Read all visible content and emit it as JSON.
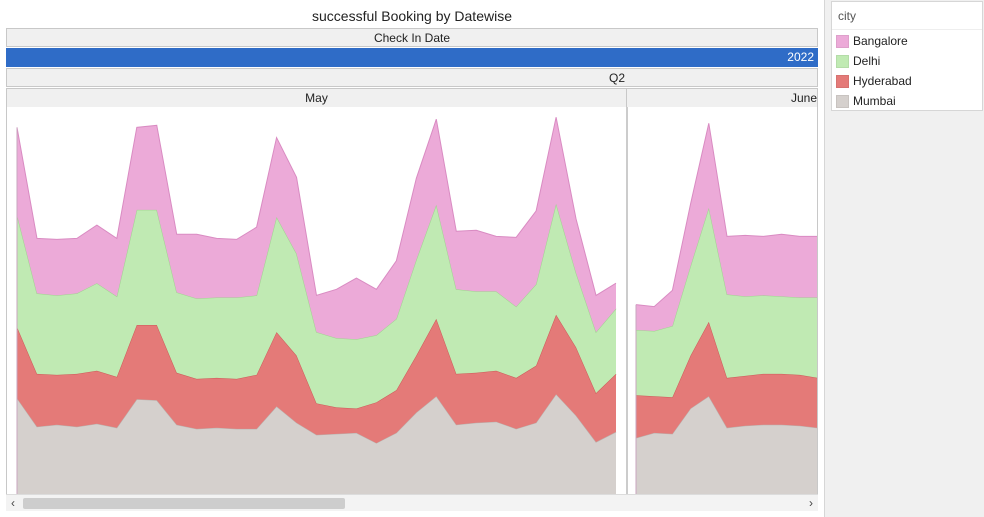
{
  "header": {
    "title": "successful Booking  by Datewise",
    "check_in_label": "Check In Date",
    "year_label": "2022",
    "quarter_label": "Q2",
    "months": [
      "May",
      "June"
    ]
  },
  "legend": {
    "title": "city",
    "items": [
      {
        "label": "Bangalore",
        "color": "#ecaad8"
      },
      {
        "label": "Delhi",
        "color": "#c0eab3"
      },
      {
        "label": "Hyderabad",
        "color": "#e47a78"
      },
      {
        "label": "Mumbai",
        "color": "#d5d0cd"
      }
    ]
  },
  "scrollbar": {
    "left_icon": "chevron-left-icon",
    "right_icon": "chevron-right-icon"
  },
  "chart_data": {
    "type": "area",
    "stacked": true,
    "title": "successful Booking  by Datewise",
    "xlabel": "Check In Date",
    "ylabel": "",
    "axes_shown": false,
    "grid": false,
    "colors": {
      "Bangalore": "#ecaad8",
      "Delhi": "#c0eab3",
      "Hyderabad": "#e47a78",
      "Mumbai": "#d5d0cd"
    },
    "panels": [
      {
        "month": "May",
        "series": [
          {
            "name": "Mumbai",
            "values": [
              94,
              66,
              68,
              66,
              69,
              65,
              93,
              92,
              68,
              64,
              65,
              64,
              64,
              86,
              70,
              58,
              59,
              60,
              50,
              60,
              80,
              96,
              68,
              70,
              71,
              64,
              70,
              98,
              77,
              51,
              61
            ]
          },
          {
            "name": "Hyderabad",
            "values": [
              70,
              52,
              49,
              52,
              52,
              50,
              73,
              74,
              51,
              49,
              49,
              49,
              53,
              73,
              66,
              31,
              26,
              24,
              40,
              42,
              56,
              76,
              50,
              49,
              50,
              50,
              56,
              78,
              67,
              48,
              57
            ]
          },
          {
            "name": "Delhi",
            "values": [
              110,
              79,
              78,
              79,
              86,
              79,
              113,
              113,
              79,
              79,
              79,
              80,
              78,
              113,
              100,
              70,
              68,
              68,
              66,
              70,
              94,
              112,
              83,
              80,
              78,
              70,
              80,
              109,
              73,
              60,
              64
            ]
          },
          {
            "name": "Bangalore",
            "values": [
              86,
              54,
              55,
              54,
              57,
              57,
              81,
              83,
              57,
              63,
              58,
              57,
              67,
              78,
              75,
              36,
              48,
              60,
              45,
              57,
              80,
              84,
              57,
              60,
              54,
              68,
              72,
              85,
              53,
              36,
              25
            ]
          }
        ]
      },
      {
        "month": "June",
        "series": [
          {
            "name": "Mumbai",
            "values": [
              55,
              60,
              59,
              84,
              96,
              65,
              67,
              68,
              68,
              67,
              65
            ]
          },
          {
            "name": "Hyderabad",
            "values": [
              42,
              36,
              36,
              52,
              73,
              49,
              49,
              50,
              50,
              50,
              49
            ]
          },
          {
            "name": "Delhi",
            "values": [
              64,
              64,
              70,
              88,
              112,
              82,
              78,
              77,
              76,
              76,
              79
            ]
          },
          {
            "name": "Bangalore",
            "values": [
              25,
              24,
              35,
              61,
              83,
              57,
              60,
              58,
              61,
              60,
              60
            ]
          }
        ]
      }
    ],
    "ylim": [
      0,
      380
    ]
  }
}
